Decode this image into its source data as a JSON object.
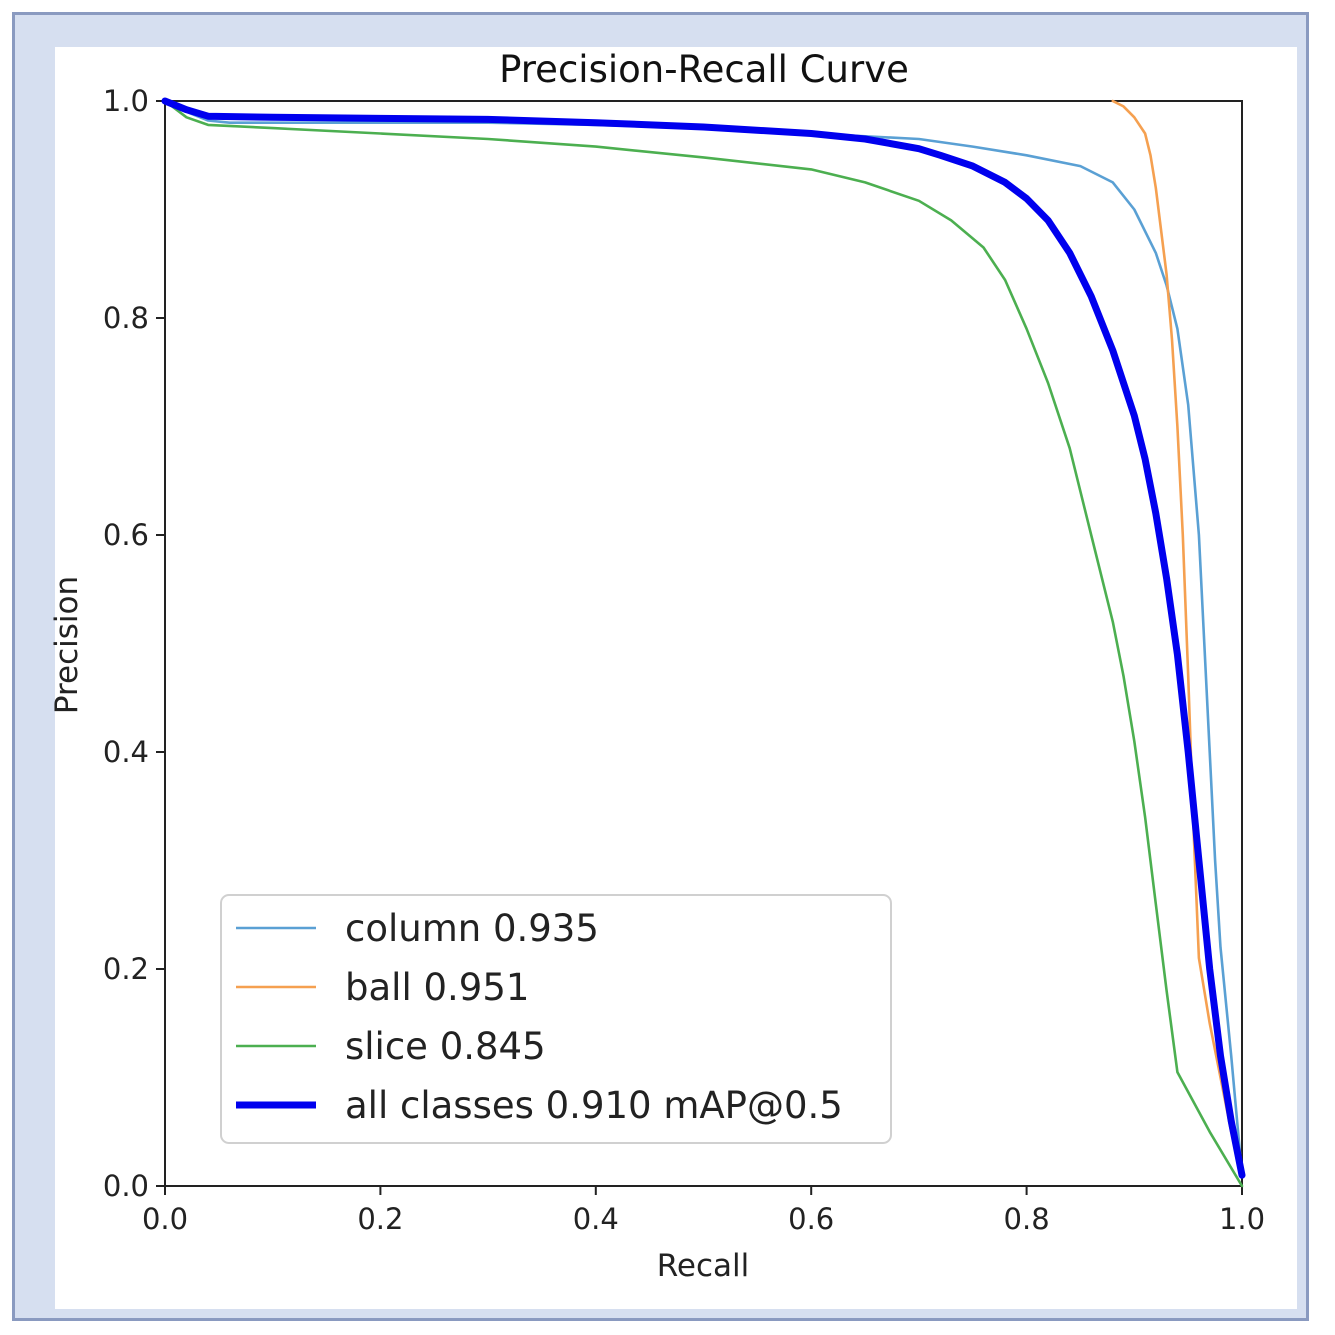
{
  "chart_data": {
    "type": "line",
    "title": "Precision-Recall Curve",
    "xlabel": "Recall",
    "ylabel": "Precision",
    "xlim": [
      0,
      1
    ],
    "ylim": [
      0,
      1
    ],
    "x_ticks": [
      "0.0",
      "0.2",
      "0.4",
      "0.6",
      "0.8",
      "1.0"
    ],
    "y_ticks": [
      "0.0",
      "0.2",
      "0.4",
      "0.6",
      "0.8",
      "1.0"
    ],
    "x_tick_values": [
      0,
      0.2,
      0.4,
      0.6,
      0.8,
      1.0
    ],
    "y_tick_values": [
      0,
      0.2,
      0.4,
      0.6,
      0.8,
      1.0
    ],
    "grid": false,
    "legend_position": "bottom-left",
    "series": [
      {
        "name": "column 0.935",
        "color": "#5aa0d4",
        "weight": "thin",
        "x": [
          0,
          0.02,
          0.04,
          0.06,
          0.1,
          0.2,
          0.3,
          0.4,
          0.5,
          0.6,
          0.7,
          0.75,
          0.8,
          0.85,
          0.88,
          0.9,
          0.92,
          0.93,
          0.94,
          0.95,
          0.96,
          0.965,
          0.97,
          0.975,
          0.98,
          0.99,
          1.0
        ],
        "y": [
          1.0,
          0.99,
          0.982,
          0.98,
          0.98,
          0.98,
          0.98,
          0.978,
          0.975,
          0.97,
          0.965,
          0.958,
          0.95,
          0.94,
          0.925,
          0.9,
          0.86,
          0.83,
          0.79,
          0.72,
          0.6,
          0.5,
          0.4,
          0.3,
          0.22,
          0.12,
          0.01
        ]
      },
      {
        "name": "ball 0.951",
        "color": "#f5a050",
        "weight": "thin",
        "x": [
          0.88,
          0.89,
          0.9,
          0.91,
          0.915,
          0.92,
          0.925,
          0.93,
          0.935,
          0.94,
          0.945,
          0.95,
          0.955,
          0.96,
          0.965,
          0.97,
          0.98,
          0.99,
          1.0
        ],
        "y": [
          1.0,
          0.995,
          0.985,
          0.97,
          0.95,
          0.92,
          0.88,
          0.84,
          0.78,
          0.7,
          0.6,
          0.47,
          0.33,
          0.21,
          0.18,
          0.15,
          0.1,
          0.05,
          0.01
        ]
      },
      {
        "name": "slice 0.845",
        "color": "#4caf50",
        "weight": "thin",
        "x": [
          0,
          0.02,
          0.04,
          0.1,
          0.2,
          0.3,
          0.4,
          0.5,
          0.6,
          0.65,
          0.7,
          0.73,
          0.76,
          0.78,
          0.8,
          0.82,
          0.84,
          0.86,
          0.88,
          0.89,
          0.9,
          0.91,
          0.92,
          0.93,
          0.94,
          0.97,
          1.0
        ],
        "y": [
          1.0,
          0.985,
          0.978,
          0.975,
          0.97,
          0.965,
          0.958,
          0.948,
          0.937,
          0.925,
          0.908,
          0.89,
          0.865,
          0.835,
          0.79,
          0.74,
          0.68,
          0.6,
          0.52,
          0.47,
          0.41,
          0.34,
          0.26,
          0.18,
          0.105,
          0.05,
          0.0
        ]
      },
      {
        "name": "all classes 0.910 mAP@0.5",
        "color": "#0000ee",
        "weight": "thick",
        "x": [
          0,
          0.02,
          0.04,
          0.1,
          0.2,
          0.3,
          0.4,
          0.5,
          0.6,
          0.65,
          0.7,
          0.72,
          0.75,
          0.78,
          0.8,
          0.82,
          0.84,
          0.86,
          0.88,
          0.9,
          0.91,
          0.92,
          0.93,
          0.94,
          0.95,
          0.96,
          0.97,
          0.98,
          0.99,
          1.0
        ],
        "y": [
          1.0,
          0.992,
          0.986,
          0.985,
          0.984,
          0.983,
          0.98,
          0.976,
          0.97,
          0.965,
          0.956,
          0.95,
          0.94,
          0.925,
          0.91,
          0.89,
          0.86,
          0.82,
          0.77,
          0.71,
          0.67,
          0.62,
          0.56,
          0.49,
          0.4,
          0.3,
          0.2,
          0.12,
          0.06,
          0.01
        ]
      }
    ]
  }
}
